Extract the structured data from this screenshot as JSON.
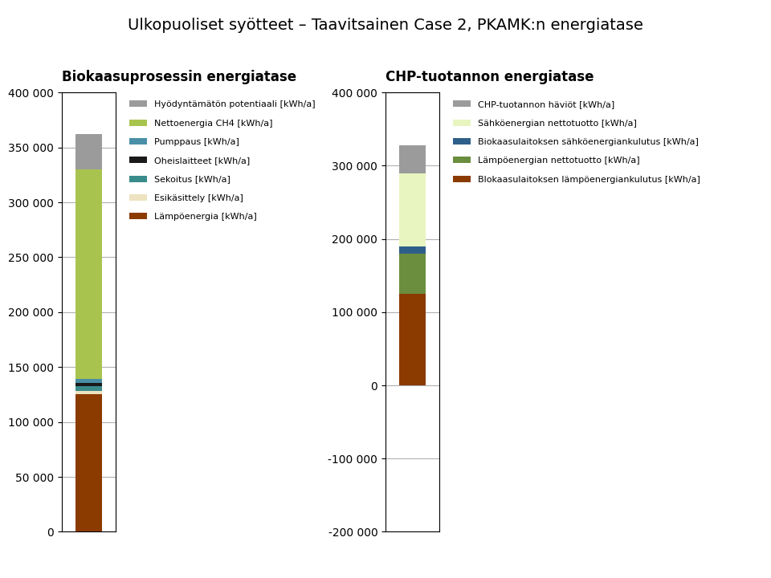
{
  "title": "Ulkopuoliset syötteet – Taavitsainen Case 2, PKAMK:n energiatase",
  "chart_data": [
    {
      "type": "bar",
      "stacked": true,
      "grid": true,
      "legend": "upper left",
      "title": "Biokaasuprosessin energiatase",
      "categories": [
        null
      ],
      "series": [
        {
          "name": "Lämpöenergia [kWh/a]",
          "color": "#8B3A00",
          "values": [
            125000
          ]
        },
        {
          "name": "Esikäsittely [kWh/a]",
          "color": "#EDE3C0",
          "values": [
            3500
          ]
        },
        {
          "name": "Sekoitus [kWh/a]",
          "color": "#3A8B8B",
          "values": [
            4000
          ]
        },
        {
          "name": "Oheislaitteet [kWh/a]",
          "color": "#1A1A1A",
          "values": [
            3000
          ]
        },
        {
          "name": "Pumppaus [kWh/a]",
          "color": "#4A8FA8",
          "values": [
            3500
          ]
        },
        {
          "name": "Nettoenergia CH4 [kWh/a]",
          "color": "#A8C44E",
          "values": [
            191000
          ]
        },
        {
          "name": "Hyödyntämätön potentiaali [kWh/a]",
          "color": "#9B9B9B",
          "values": [
            32000
          ]
        }
      ],
      "ylim": [
        0,
        400000
      ],
      "yticks": [
        0,
        {
          "value": 50000,
          "label": "50 000"
        },
        {
          "value": 100000,
          "label": "100 000"
        },
        {
          "value": 150000,
          "label": "150 000"
        },
        {
          "value": 200000,
          "label": "200 000"
        },
        {
          "value": 250000,
          "label": "250 000"
        },
        {
          "value": 300000,
          "label": "300 000"
        },
        {
          "value": 350000,
          "label": "350 000"
        },
        {
          "value": 400000,
          "label": "400 000"
        }
      ]
    },
    {
      "type": "bar",
      "stacked": true,
      "grid": true,
      "legend": "upper left",
      "title": "CHP-tuotannon energiatase",
      "categories": [
        null
      ],
      "series": [
        {
          "name": "Blokaasulaitoksen lämpöenergiankulutus [kWh/a]",
          "color": "#8B3A00",
          "values": [
            125000
          ]
        },
        {
          "name": "Lämpöenergian nettotuotto [kWh/a]",
          "color": "#6B8E3E",
          "values": [
            55000
          ]
        },
        {
          "name": "Biokaasulaitoksen sähköenergiankulutus [kWh/a]",
          "color": "#2E5F8A",
          "values": [
            10000
          ]
        },
        {
          "name": "Sähköenergian nettotuotto [kWh/a]",
          "color": "#E8F5C0",
          "values": [
            100000
          ]
        },
        {
          "name": "CHP-tuotannon häviöt [kWh/a]",
          "color": "#9B9B9B",
          "values": [
            38000
          ]
        }
      ],
      "ylim": [
        -200000,
        400000
      ],
      "yticks": [
        {
          "value": -200000,
          "label": "-200 000"
        },
        {
          "value": -100000,
          "label": "-100 000"
        },
        0,
        {
          "value": 100000,
          "label": "100 000"
        },
        {
          "value": 200000,
          "label": "200 000"
        },
        {
          "value": 300000,
          "label": "300 000"
        },
        {
          "value": 400000,
          "label": "400 000"
        }
      ]
    }
  ]
}
